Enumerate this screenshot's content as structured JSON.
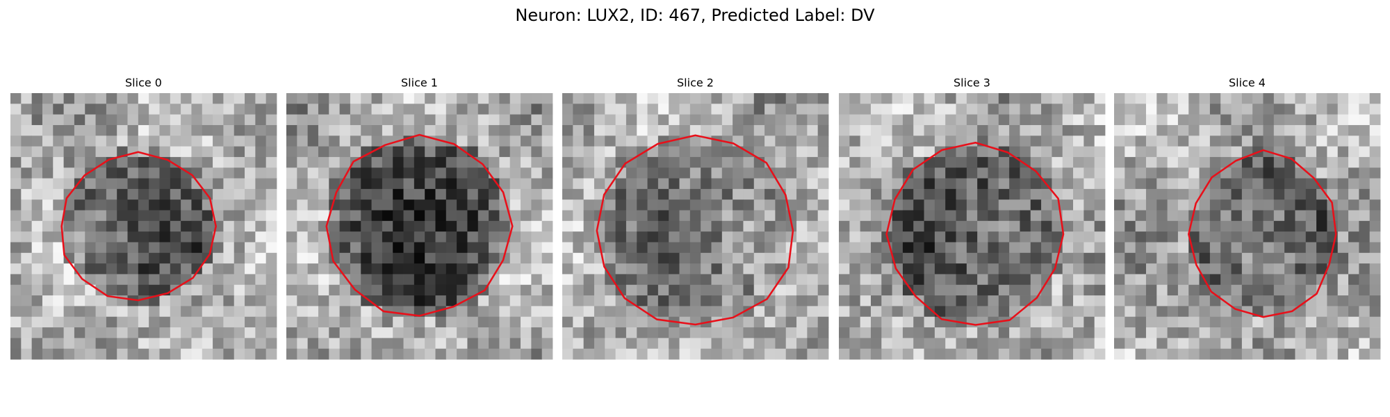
{
  "title": "Neuron: LUX2, ID: 467, Predicted Label: DV",
  "panels": [
    {
      "title": "Slice 0"
    },
    {
      "title": "Slice 1"
    },
    {
      "title": "Slice 2"
    },
    {
      "title": "Slice 3"
    },
    {
      "title": "Slice 4"
    }
  ]
}
